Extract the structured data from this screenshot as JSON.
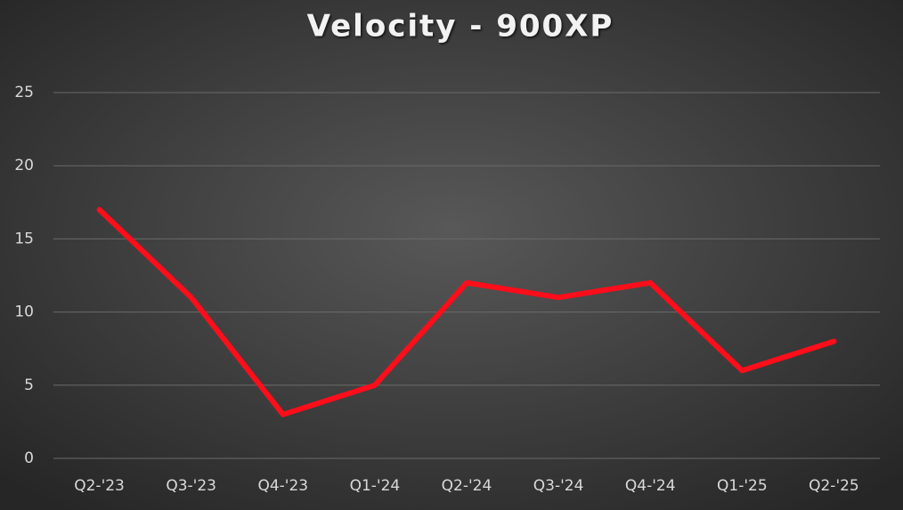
{
  "chart_data": {
    "type": "line",
    "title": "Velocity - 900XP",
    "categories": [
      "Q2-'23",
      "Q3-'23",
      "Q4-'23",
      "Q1-'24",
      "Q2-'24",
      "Q3-'24",
      "Q4-'24",
      "Q1-'25",
      "Q2-'25"
    ],
    "values": [
      17,
      11,
      3,
      5,
      12,
      11,
      12,
      6,
      8
    ],
    "color": "#ff0d1a",
    "ylim": [
      0,
      25
    ],
    "yticks": [
      0,
      5,
      10,
      15,
      20,
      25
    ],
    "grid": true
  }
}
